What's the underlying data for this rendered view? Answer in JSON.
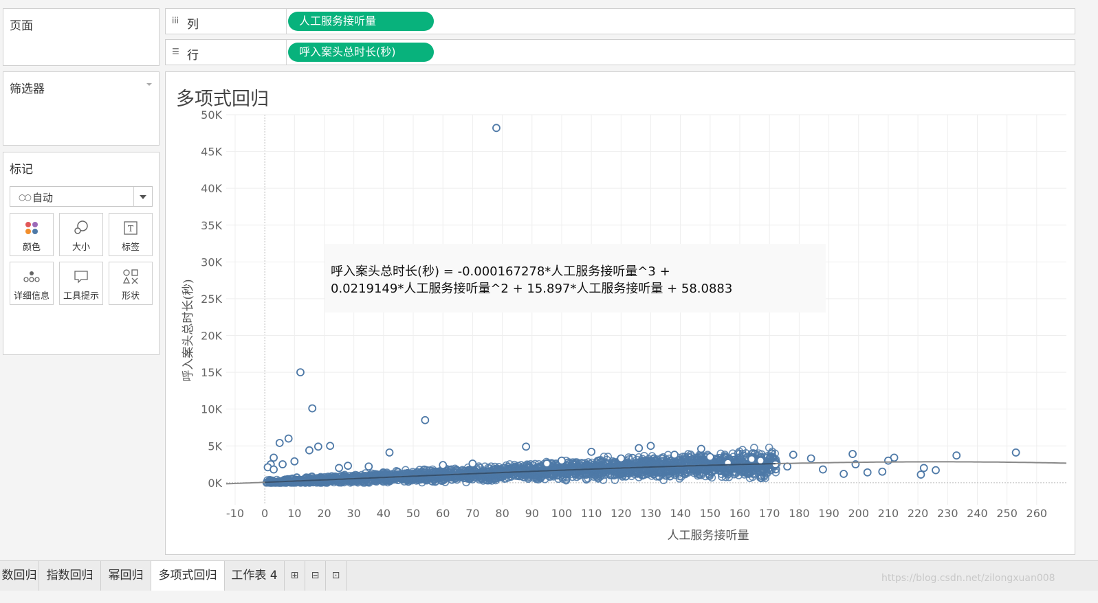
{
  "panels": {
    "pages_title": "页面",
    "filters_title": "筛选器",
    "marks_title": "标记",
    "mark_type": "自动",
    "mark_buttons": [
      {
        "label": "颜色",
        "icon": "color-icon"
      },
      {
        "label": "大小",
        "icon": "size-icon"
      },
      {
        "label": "标签",
        "icon": "label-icon"
      },
      {
        "label": "详细信息",
        "icon": "detail-icon"
      },
      {
        "label": "工具提示",
        "icon": "tooltip-icon"
      },
      {
        "label": "形状",
        "icon": "shape-icon"
      }
    ]
  },
  "shelves": {
    "columns_label": "列",
    "columns_pill": "人工服务接听量",
    "rows_label": "行",
    "rows_pill": "呼入案头总时长(秒)"
  },
  "sheet_title": "多项式回归",
  "trend_equation": {
    "line1": "呼入案头总时长(秒) = -0.000167278*人工服务接听量^3 +",
    "line2": "0.0219149*人工服务接听量^2 + 15.897*人工服务接听量 + 58.0883"
  },
  "chart_data": {
    "type": "scatter",
    "title": "多项式回归",
    "xlabel": "人工服务接听量",
    "ylabel": "呼入案头总时长(秒)",
    "xlim": [
      -13,
      270
    ],
    "ylim": [
      -3000,
      50000
    ],
    "x_ticks": [
      -10,
      0,
      10,
      20,
      30,
      40,
      50,
      60,
      70,
      80,
      90,
      100,
      110,
      120,
      130,
      140,
      150,
      160,
      170,
      180,
      190,
      200,
      210,
      220,
      230,
      240,
      250,
      260
    ],
    "x_tick_labels": [
      "-10",
      "0",
      "10",
      "20",
      "30",
      "40",
      "50",
      "60",
      "70",
      "80",
      "90",
      "100",
      "110",
      "120",
      "130",
      "140",
      "150",
      "160",
      "170",
      "180",
      "190",
      "200",
      "210",
      "220",
      "230",
      "240",
      "250",
      "260"
    ],
    "y_ticks": [
      0,
      5000,
      10000,
      15000,
      20000,
      25000,
      30000,
      35000,
      40000,
      45000,
      50000
    ],
    "y_tick_labels": [
      "0K",
      "5K",
      "10K",
      "15K",
      "20K",
      "25K",
      "30K",
      "35K",
      "40K",
      "45K",
      "50K"
    ],
    "grid": true,
    "marker": "circle-open",
    "point_color": "#4e79a7",
    "trend_color": "#888888",
    "trend_type": "polynomial-degree-3",
    "trend_coefficients": [
      58.0883,
      15.897,
      0.0219149,
      -0.000167278
    ],
    "series": [
      {
        "x": [
          78,
          12,
          16,
          54,
          8,
          5,
          3,
          15,
          18,
          22,
          42,
          88,
          110,
          126,
          130,
          147,
          178,
          184,
          198,
          203,
          208,
          212,
          221,
          226,
          233,
          253,
          199,
          188,
          176,
          195,
          210,
          222,
          167,
          172,
          156,
          164,
          150,
          138,
          120,
          100,
          95,
          70,
          60,
          35,
          28,
          25,
          2,
          1,
          3,
          6,
          10
        ],
        "y": [
          48200,
          15000,
          10100,
          8500,
          6000,
          5400,
          3400,
          4400,
          4900,
          5000,
          4100,
          4900,
          4200,
          4700,
          5000,
          4600,
          3800,
          3300,
          3900,
          1400,
          1500,
          3400,
          1100,
          1700,
          3700,
          4100,
          2500,
          1800,
          2200,
          1200,
          3000,
          2000,
          3000,
          2500,
          2700,
          3200,
          3500,
          3800,
          3300,
          3000,
          2600,
          2600,
          2400,
          2200,
          2300,
          2000,
          2500,
          2100,
          1800,
          2500,
          2900
        ]
      }
    ]
  },
  "tabs": [
    "数回归",
    "指数回归",
    "幂回归",
    "多项式回归",
    "工作表 4"
  ],
  "active_tab": "多项式回归",
  "watermark": "https://blog.csdn.net/zilongxuan008"
}
